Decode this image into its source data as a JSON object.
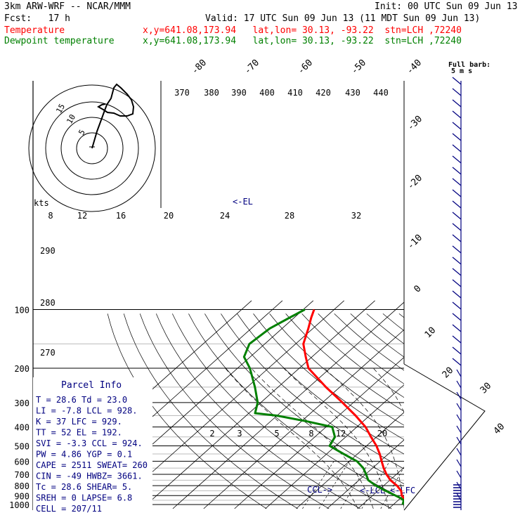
{
  "header": {
    "model": "3km ARW-WRF -- NCAR/MMM",
    "init": "Init: 00 UTC Sun 09 Jun 13",
    "fcst": "Fcst:   17 h",
    "valid": "Valid: 17 UTC Sun 09 Jun 13 (11 MDT Sun 09 Jun 13)",
    "temp_label": "Temperature",
    "dew_label": "Dewpoint temperature",
    "location": "x,y=641.08,173.94   lat,lon= 30.13, -93.22  stn=LCH ,72240"
  },
  "colors": {
    "temperature": "#ff0000",
    "dewpoint": "#008000",
    "panel_text": "#000080",
    "text": "#000000"
  },
  "barb_legend": {
    "line1": "Full barb:",
    "line2": "5 m s"
  },
  "chart_data": {
    "type": "line",
    "subtype": "skew-T log-P",
    "pressure_ticks": [
      100,
      200,
      300,
      400,
      500,
      600,
      700,
      800,
      900,
      1000
    ],
    "isotherm_labels": [
      "-80",
      "-70",
      "-60",
      "-50",
      "-40",
      "-30",
      "-20",
      "-10",
      "0",
      "10",
      "20",
      "30",
      "40"
    ],
    "theta_labels": [
      "370",
      "380",
      "390",
      "400",
      "410",
      "420",
      "430",
      "440"
    ],
    "theta_low_labels": [
      "290",
      "280",
      "270"
    ],
    "mixing_ratio_labels": [
      "2",
      "3",
      "5",
      "8",
      "12",
      "20"
    ],
    "series": [
      {
        "name": "Temperature",
        "color": "#ff0000",
        "points": [
          [
            1000,
            28.6
          ],
          [
            975,
            25.4
          ],
          [
            950,
            22.6
          ],
          [
            925,
            21.0
          ],
          [
            900,
            19.5
          ],
          [
            850,
            17.5
          ],
          [
            800,
            14.3
          ],
          [
            750,
            10.2
          ],
          [
            700,
            6.8
          ],
          [
            650,
            3.6
          ],
          [
            600,
            0.5
          ],
          [
            550,
            -2.8
          ],
          [
            500,
            -6.8
          ],
          [
            450,
            -11.8
          ],
          [
            400,
            -17.2
          ],
          [
            350,
            -24.5
          ],
          [
            300,
            -33.5
          ],
          [
            250,
            -44.5
          ],
          [
            200,
            -57.0
          ],
          [
            175,
            -62.0
          ],
          [
            150,
            -67.5
          ],
          [
            125,
            -71.5
          ],
          [
            110,
            -74.5
          ],
          [
            100,
            -76.5
          ]
        ]
      },
      {
        "name": "Dewpoint temperature",
        "color": "#008000",
        "points": [
          [
            1000,
            23.0
          ],
          [
            975,
            22.4
          ],
          [
            950,
            21.8
          ],
          [
            925,
            19.8
          ],
          [
            900,
            17.5
          ],
          [
            850,
            12.5
          ],
          [
            800,
            7.5
          ],
          [
            750,
            3.0
          ],
          [
            700,
            0.2
          ],
          [
            650,
            -3.0
          ],
          [
            600,
            -7.5
          ],
          [
            550,
            -14.5
          ],
          [
            500,
            -22.0
          ],
          [
            450,
            -23.5
          ],
          [
            400,
            -28.0
          ],
          [
            375,
            -38.0
          ],
          [
            350,
            -50.0
          ],
          [
            340,
            -58.0
          ],
          [
            300,
            -61.0
          ],
          [
            250,
            -67.5
          ],
          [
            200,
            -76.0
          ],
          [
            175,
            -82.0
          ],
          [
            150,
            -85.0
          ],
          [
            125,
            -84.0
          ],
          [
            110,
            -81.5
          ],
          [
            100,
            -79.5
          ]
        ]
      }
    ],
    "hodograph": {
      "units": "kts",
      "ring_labels": [
        "5",
        "10",
        "15"
      ],
      "speed_labels": [
        "8",
        "12",
        "16",
        "20",
        "24",
        "28",
        "32"
      ]
    },
    "level_markers": [
      "CCL",
      "LCL",
      "LFC",
      "EL"
    ],
    "wind_barbs_label": "wind barbs (m s-1) along right axis"
  },
  "parcel_info": {
    "title": "Parcel Info",
    "rows": [
      "T  =   28.6  Td =  23.0",
      "LI =   -7.8  LCL =  928.",
      "K  =     37  LFC =  929.",
      "TT =     52  EL  =  192.",
      "SVI =  -3.3  CCL =  924.",
      "PW =   4.86  YGP =   0.1",
      "CAPE =  2511  SWEAT=  260",
      "CIN  =   -49  HWBZ= 3661.",
      "Tc  =  28.6  SHEAR=   5.",
      "SREH =    0  LAPSE=  6.8",
      "CELL = 207/11"
    ]
  }
}
